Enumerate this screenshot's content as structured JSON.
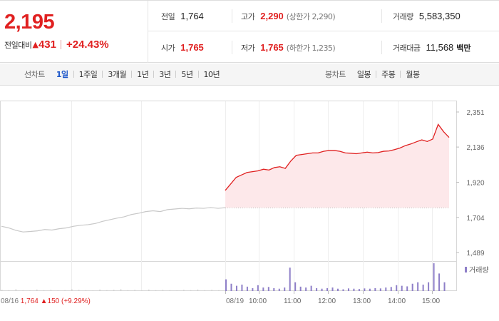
{
  "quote": {
    "price": "2,195",
    "diff_label": "전일대비",
    "diff_arrow": "▲",
    "diff_value": "431",
    "diff_rate": "+24.43%",
    "prev_close": {
      "label": "전일",
      "value": "1,764"
    },
    "high": {
      "label": "고가",
      "value": "2,290",
      "sub": "(상한가 2,290)"
    },
    "volume": {
      "label": "거래량",
      "value": "5,583,350"
    },
    "open": {
      "label": "시가",
      "value": "1,765"
    },
    "low": {
      "label": "저가",
      "value": "1,765",
      "sub": "(하한가 1,235)"
    },
    "amount": {
      "label": "거래대금",
      "value": "11,568",
      "unit": "백만"
    }
  },
  "line_tabs": {
    "title": "선차트",
    "items": [
      "1일",
      "1주일",
      "3개월",
      "1년",
      "3년",
      "5년",
      "10년"
    ],
    "active_index": 0
  },
  "candle_tabs": {
    "title": "봉차트",
    "items": [
      "일봉",
      "주봉",
      "월봉"
    ]
  },
  "colors": {
    "up": "#e02020",
    "blue": "#1a55c9",
    "prev_line": "#c8c8c8",
    "area_fill": "#fde8ea",
    "volume_bar": "#8e7fc8"
  },
  "chart_data": {
    "type": "line",
    "y_ticks": [
      "2,351",
      "2,136",
      "1,920",
      "1,704",
      "1,489"
    ],
    "y_tick_values": [
      2351,
      2136,
      1920,
      1704,
      1489
    ],
    "ylim": [
      1489,
      2351
    ],
    "x_ticks": [
      "08/19",
      "10:00",
      "11:00",
      "12:00",
      "13:00",
      "14:00",
      "15:00"
    ],
    "prev_day_label": {
      "date": "08/16",
      "price": "1,764",
      "arrow": "▲",
      "change": "150",
      "rate": "(+9.29%)"
    },
    "volume_legend": "거래량",
    "reference_price": 1764,
    "series": [
      {
        "day": "08/16",
        "values": [
          1650,
          1640,
          1625,
          1615,
          1618,
          1622,
          1630,
          1627,
          1635,
          1640,
          1650,
          1656,
          1660,
          1667,
          1680,
          1690,
          1700,
          1708,
          1722,
          1730,
          1740,
          1745,
          1740,
          1752,
          1756,
          1760,
          1757,
          1762,
          1760,
          1765,
          1760,
          1764
        ]
      },
      {
        "day": "08/19",
        "values": [
          1870,
          1910,
          1950,
          1965,
          1980,
          1985,
          1990,
          2000,
          1995,
          2010,
          2015,
          2005,
          2050,
          2085,
          2090,
          2095,
          2100,
          2100,
          2110,
          2115,
          2115,
          2110,
          2100,
          2098,
          2095,
          2100,
          2105,
          2100,
          2102,
          2110,
          2112,
          2120,
          2130,
          2145,
          2155,
          2168,
          2180,
          2170,
          2185,
          2275,
          2230,
          2195
        ]
      }
    ],
    "volume": {
      "day1": [
        4,
        3,
        6,
        3,
        2,
        5,
        3,
        4,
        2,
        3,
        6,
        4,
        3,
        2,
        5,
        3,
        4,
        6,
        3,
        4,
        2,
        5,
        3,
        4,
        3,
        2,
        4,
        3,
        5,
        3,
        4,
        3
      ],
      "day2": [
        40,
        25,
        18,
        22,
        15,
        10,
        20,
        12,
        14,
        10,
        8,
        12,
        80,
        30,
        15,
        12,
        18,
        10,
        8,
        10,
        12,
        8,
        6,
        9,
        8,
        7,
        9,
        8,
        10,
        9,
        12,
        14,
        20,
        18,
        16,
        25,
        30,
        22,
        30,
        95,
        60,
        30
      ]
    }
  }
}
